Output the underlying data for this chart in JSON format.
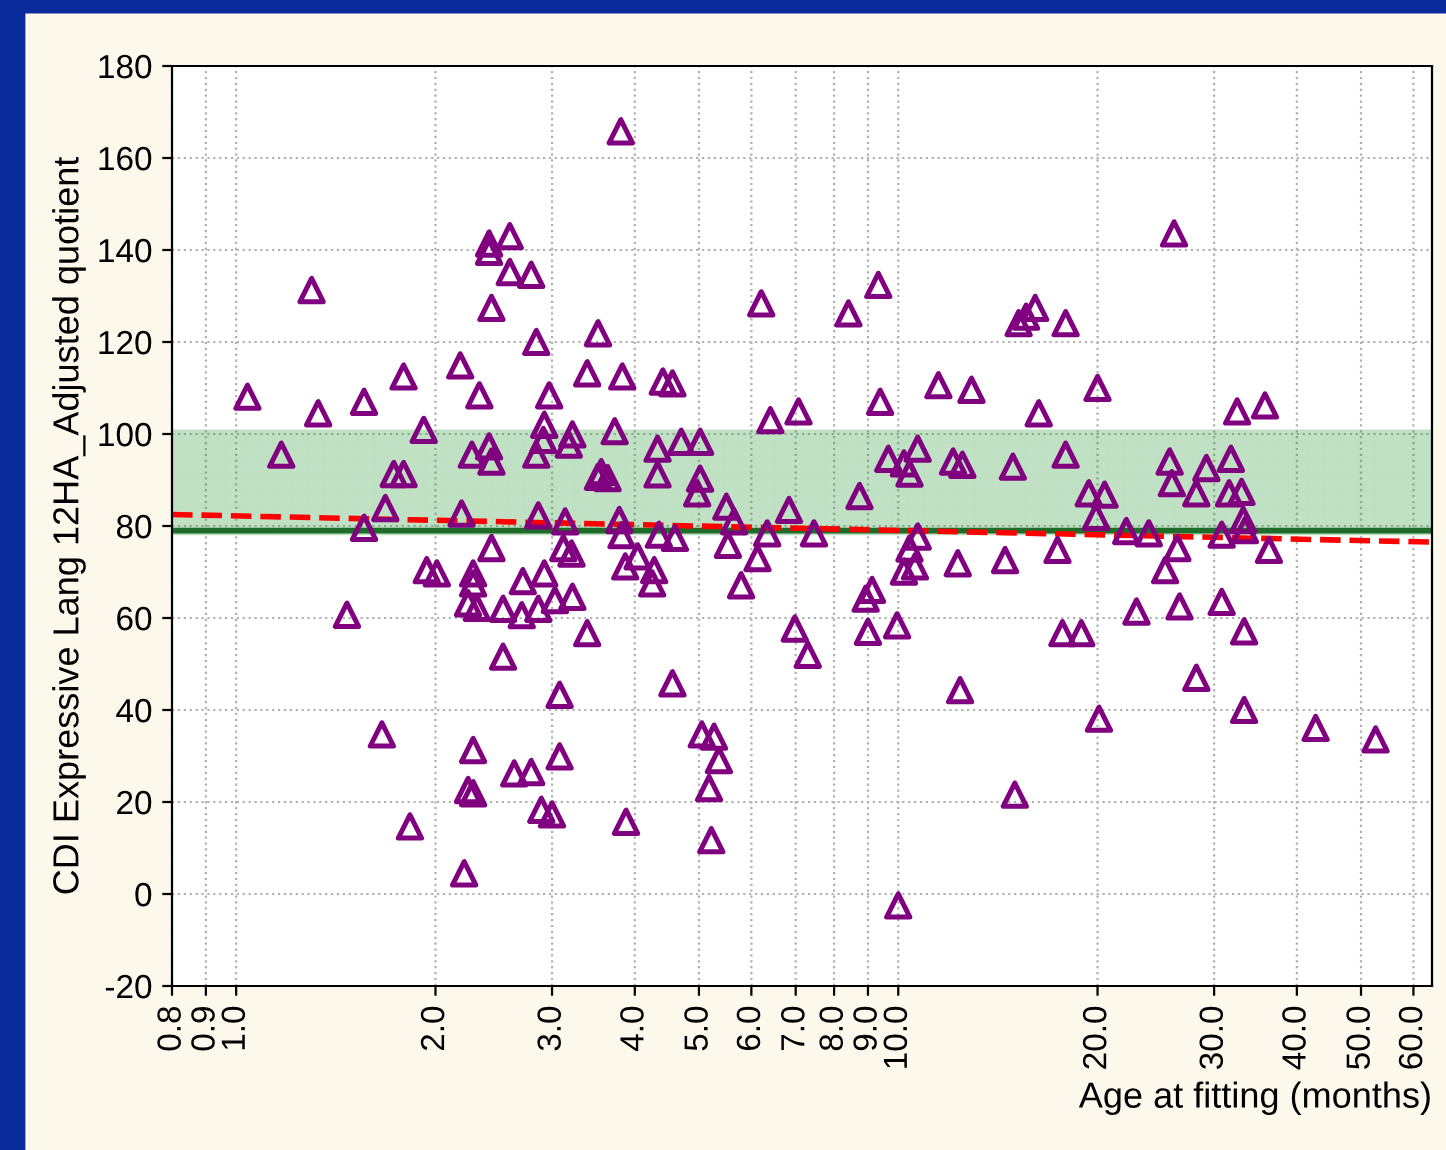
{
  "chart_data": {
    "type": "scatter",
    "xlabel": "Age at fitting (months)",
    "ylabel": "CDI Expressive Lang 12HA_Adjusted quotient",
    "log": "x",
    "grid": true,
    "marker": "triangle",
    "legend": false,
    "xlim": [
      0.8,
      64
    ],
    "ylim": [
      -20,
      180
    ],
    "xticks": [
      {
        "value": 0.8,
        "label": "0.8"
      },
      {
        "value": 0.9,
        "label": "0.9"
      },
      {
        "value": 1,
        "label": "1.0"
      },
      {
        "value": 2,
        "label": "2.0"
      },
      {
        "value": 3,
        "label": "3.0"
      },
      {
        "value": 4,
        "label": "4.0"
      },
      {
        "value": 5,
        "label": "5.0"
      },
      {
        "value": 6,
        "label": "6.0"
      },
      {
        "value": 7,
        "label": "7.0"
      },
      {
        "value": 8,
        "label": "8.0"
      },
      {
        "value": 9,
        "label": "9.0"
      },
      {
        "value": 10,
        "label": "10.0"
      },
      {
        "value": 20,
        "label": "20.0"
      },
      {
        "value": 30,
        "label": "30.0"
      },
      {
        "value": 40,
        "label": "40.0"
      },
      {
        "value": 50,
        "label": "50.0"
      },
      {
        "value": 60,
        "label": "60.0"
      }
    ],
    "yticks": [
      -20,
      0,
      20,
      40,
      60,
      80,
      100,
      120,
      140,
      160,
      180
    ],
    "bands": [
      {
        "axis": "y",
        "from": 78,
        "to": 101,
        "color": "#2e9a3c"
      }
    ],
    "ref_lines": [
      {
        "axis": "y",
        "value": 79,
        "color": "#1f6b2a"
      }
    ],
    "series": [
      {
        "color": "#800080",
        "x": [
          1.04,
          1.3,
          1.17,
          1.33,
          1.56,
          1.79,
          1.92,
          1.73,
          1.79,
          1.68,
          1.56,
          1.47,
          1.66,
          1.83,
          1.94,
          2.01,
          2.18,
          2.33,
          2.41,
          2.41,
          2.59,
          2.59,
          2.79,
          2.43,
          2.84,
          2.97,
          3.39,
          3.52,
          2.27,
          2.41,
          2.43,
          2.92,
          2.91,
          2.84,
          3.22,
          3.18,
          3.52,
          2.19,
          2.86,
          3.14,
          2.43,
          3.12,
          3.21,
          2.28,
          2.28,
          2.92,
          2.71,
          2.24,
          2.31,
          2.53,
          2.7,
          2.86,
          3.03,
          3.22,
          3.39,
          2.53,
          3.08,
          2.28,
          3.08,
          2.63,
          2.79,
          2.24,
          2.28,
          2.89,
          3.0,
          2.21,
          3.81,
          3.83,
          4.41,
          4.56,
          3.73,
          3.56,
          3.64,
          4.33,
          4.33,
          4.7,
          5.02,
          5.02,
          4.97,
          5.5,
          5.65,
          6.84,
          6.41,
          7.07,
          6.21,
          8.41,
          9.33,
          9.39,
          8.74,
          9.66,
          10.2,
          10.7,
          10.4,
          11.5,
          12.9,
          12.1,
          12.5,
          14.9,
          3.79,
          3.82,
          3.87,
          4.04,
          4.28,
          4.25,
          4.35,
          4.6,
          5.53,
          6.13,
          6.34,
          7.46,
          5.79,
          4.56,
          6.98,
          7.3,
          8.93,
          9.13,
          9.0,
          9.96,
          10.2,
          10.6,
          10.4,
          10.7,
          12.3,
          14.5,
          12.4,
          5.05,
          5.27,
          5.36,
          5.18,
          5.22,
          3.88,
          10.0,
          15.2,
          15.6,
          16.1,
          17.9,
          20.0,
          16.3,
          26.1,
          32.5,
          35.8,
          17.9,
          19.4,
          20.5,
          19.9,
          22.1,
          23.9,
          25.7,
          25.9,
          29.2,
          28.2,
          31.8,
          31.6,
          33.0,
          33.2,
          33.4,
          30.8,
          36.3,
          17.4,
          26.4,
          25.3,
          22.9,
          26.6,
          30.8,
          17.7,
          18.9,
          33.3,
          28.2,
          20.1,
          33.3,
          42.7,
          52.6,
          15.0
        ],
        "values": [
          108.1,
          131.3,
          95.5,
          104.5,
          107,
          112.5,
          100.9,
          91.3,
          91.3,
          83.9,
          79.6,
          60.7,
          34.7,
          14.7,
          70.4,
          69.7,
          114.9,
          108.4,
          141.4,
          139.6,
          143,
          135.2,
          134.6,
          127.4,
          120,
          108.4,
          113.2,
          121.9,
          95.5,
          97.3,
          94,
          102,
          98.7,
          95.5,
          99.9,
          97.7,
          90.7,
          82.7,
          82.3,
          81,
          75.2,
          75.2,
          74,
          69.7,
          67.5,
          69.7,
          68,
          63.2,
          62.2,
          62,
          60.6,
          62,
          63.9,
          64.6,
          56.7,
          51.6,
          43.3,
          31.3,
          29.9,
          26.2,
          26.5,
          22.6,
          21.9,
          18.3,
          17.3,
          4.5,
          165.8,
          112.5,
          111.4,
          111,
          100.6,
          91.7,
          90.4,
          96.8,
          91.2,
          98.3,
          98.3,
          90.3,
          87.1,
          84.2,
          81,
          83.5,
          103,
          104.9,
          128.4,
          126.2,
          132.4,
          107,
          86.5,
          94.6,
          93.6,
          96.8,
          91.4,
          110.6,
          109.6,
          94,
          93.3,
          92.9,
          81.3,
          78,
          71.2,
          73.4,
          70.4,
          67.5,
          78.1,
          77.4,
          75.9,
          73,
          78.4,
          78.4,
          67.1,
          45.8,
          57.7,
          52,
          64.2,
          66.1,
          57,
          58.4,
          70.1,
          71.2,
          75.1,
          77.7,
          71.9,
          72.6,
          44.3,
          34.7,
          34.2,
          29.1,
          23,
          11.7,
          15.7,
          -2.5,
          124.1,
          125.5,
          127.4,
          124.1,
          110,
          104.5,
          143.6,
          104.9,
          106.2,
          95.5,
          87.1,
          86.8,
          82,
          78.9,
          78.4,
          94,
          89.3,
          92.6,
          87.1,
          94.6,
          87.1,
          87.4,
          81.3,
          79.1,
          78.1,
          74.8,
          74.8,
          75.2,
          70.4,
          61.4,
          62.5,
          63.5,
          56.7,
          56.7,
          57.1,
          47,
          38.1,
          40,
          36.1,
          33.6,
          21.6
        ]
      },
      {
        "type": "line",
        "color": "#ff0000",
        "line_style": "dashed",
        "marker": "none",
        "x": [
          0.8,
          64
        ],
        "values": [
          82.5,
          76.5
        ]
      }
    ]
  }
}
